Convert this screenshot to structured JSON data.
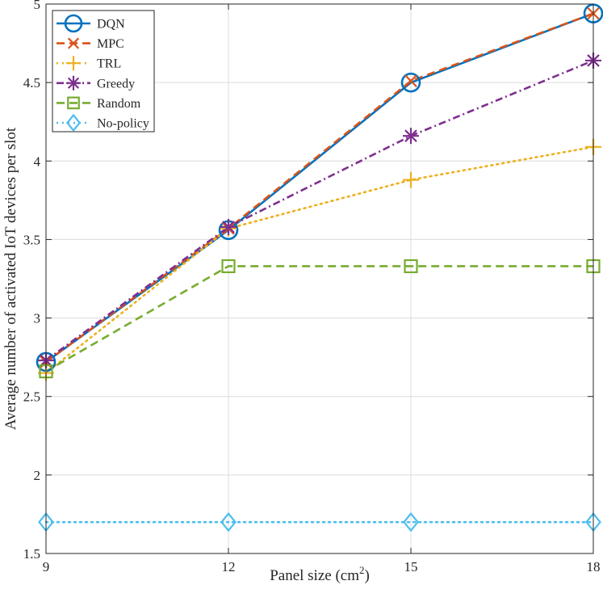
{
  "chart_data": {
    "type": "line",
    "title": "",
    "xlabel": "Panel size (cm",
    "xlabel_sup": "2",
    "xlabel_close": ")",
    "ylabel": "Average number of activated IoT devices per slot",
    "x": [
      9,
      12,
      15,
      18
    ],
    "xticks": [
      "9",
      "12",
      "15",
      "18"
    ],
    "yticks": [
      "1.5",
      "2",
      "2.5",
      "3",
      "3.5",
      "4",
      "4.5",
      "5"
    ],
    "ytick_values": [
      1.5,
      2,
      2.5,
      3,
      3.5,
      4,
      4.5,
      5
    ],
    "xlim": [
      9,
      18
    ],
    "ylim": [
      1.5,
      5
    ],
    "grid": true,
    "legend_position": "top-left",
    "series": [
      {
        "name": "DQN",
        "values": [
          2.72,
          3.56,
          4.5,
          4.94
        ],
        "color": "#0072BD",
        "marker": "circle",
        "dash": "solid"
      },
      {
        "name": "MPC",
        "values": [
          2.72,
          3.57,
          4.51,
          4.94
        ],
        "color": "#D95319",
        "marker": "x",
        "dash": "dashed"
      },
      {
        "name": "TRL",
        "values": [
          2.65,
          3.57,
          3.88,
          4.09
        ],
        "color": "#EDB120",
        "marker": "plus",
        "dash": "dotted"
      },
      {
        "name": "Greedy",
        "values": [
          2.73,
          3.58,
          4.16,
          4.64
        ],
        "color": "#7E2F8E",
        "marker": "asterisk",
        "dash": "dashdot"
      },
      {
        "name": "Random",
        "values": [
          2.66,
          3.33,
          3.33,
          3.33
        ],
        "color": "#77AC30",
        "marker": "square",
        "dash": "dashed"
      },
      {
        "name": "No-policy",
        "values": [
          1.7,
          1.7,
          1.7,
          1.7
        ],
        "color": "#4DBEEE",
        "marker": "diamond",
        "dash": "dotted"
      }
    ]
  }
}
